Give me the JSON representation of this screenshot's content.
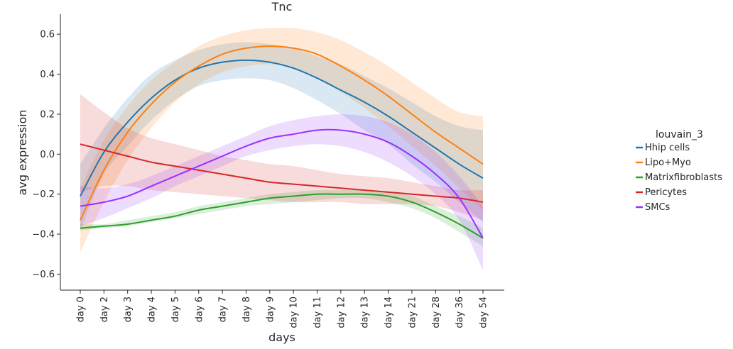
{
  "chart_data": {
    "type": "line",
    "title": "Tnc",
    "xlabel": "days",
    "ylabel": "avg expression",
    "categories": [
      "day 0",
      "day 2",
      "day 3",
      "day 4",
      "day 5",
      "day 6",
      "day 7",
      "day 8",
      "day 9",
      "day 10",
      "day 11",
      "day 12",
      "day 13",
      "day 14",
      "day 21",
      "day 28",
      "day 36",
      "day 54"
    ],
    "ylim": [
      -0.68,
      0.7
    ],
    "yticks": [
      -0.6,
      -0.4,
      -0.2,
      0.0,
      0.2,
      0.4,
      0.6
    ],
    "ytick_labels": [
      "−0.6",
      "−0.4",
      "−0.2",
      "0.0",
      "0.2",
      "0.4",
      "0.6"
    ],
    "grid": false,
    "legend": {
      "title": "louvain_3",
      "position": "right"
    },
    "series": [
      {
        "name": "Hhip cells",
        "color": "#1f77b4",
        "values": [
          -0.21,
          0.01,
          0.16,
          0.28,
          0.37,
          0.43,
          0.46,
          0.47,
          0.46,
          0.43,
          0.38,
          0.32,
          0.26,
          0.19,
          0.11,
          0.03,
          -0.05,
          -0.12
        ],
        "lower": [
          -0.38,
          -0.1,
          0.04,
          0.17,
          0.27,
          0.34,
          0.37,
          0.38,
          0.37,
          0.33,
          0.27,
          0.2,
          0.12,
          0.05,
          -0.05,
          -0.14,
          -0.24,
          -0.34
        ],
        "upper": [
          -0.05,
          0.13,
          0.28,
          0.4,
          0.47,
          0.52,
          0.55,
          0.56,
          0.55,
          0.53,
          0.49,
          0.45,
          0.39,
          0.33,
          0.26,
          0.19,
          0.14,
          0.12
        ]
      },
      {
        "name": "Lipo+Myo",
        "color": "#ff7f0e",
        "values": [
          -0.33,
          -0.08,
          0.11,
          0.25,
          0.36,
          0.44,
          0.5,
          0.53,
          0.54,
          0.53,
          0.5,
          0.44,
          0.37,
          0.29,
          0.2,
          0.11,
          0.03,
          -0.05
        ],
        "lower": [
          -0.49,
          -0.24,
          -0.03,
          0.13,
          0.26,
          0.35,
          0.41,
          0.44,
          0.45,
          0.43,
          0.38,
          0.31,
          0.23,
          0.14,
          0.04,
          -0.06,
          -0.17,
          -0.28
        ],
        "upper": [
          -0.17,
          0.07,
          0.24,
          0.37,
          0.46,
          0.54,
          0.59,
          0.62,
          0.63,
          0.63,
          0.61,
          0.57,
          0.51,
          0.44,
          0.36,
          0.28,
          0.21,
          0.19
        ]
      },
      {
        "name": "Matrixfibroblasts",
        "color": "#2ca02c",
        "values": [
          -0.37,
          -0.36,
          -0.35,
          -0.33,
          -0.31,
          -0.28,
          -0.26,
          -0.24,
          -0.22,
          -0.21,
          -0.2,
          -0.2,
          -0.2,
          -0.21,
          -0.24,
          -0.29,
          -0.35,
          -0.42
        ],
        "lower": [
          -0.38,
          -0.37,
          -0.36,
          -0.34,
          -0.32,
          -0.3,
          -0.28,
          -0.26,
          -0.25,
          -0.24,
          -0.23,
          -0.22,
          -0.22,
          -0.24,
          -0.27,
          -0.32,
          -0.39,
          -0.46
        ],
        "upper": [
          -0.35,
          -0.35,
          -0.33,
          -0.31,
          -0.29,
          -0.26,
          -0.24,
          -0.22,
          -0.2,
          -0.19,
          -0.18,
          -0.18,
          -0.18,
          -0.19,
          -0.21,
          -0.26,
          -0.31,
          -0.37
        ]
      },
      {
        "name": "Pericytes",
        "color": "#d62728",
        "values": [
          0.05,
          0.02,
          -0.01,
          -0.04,
          -0.06,
          -0.08,
          -0.1,
          -0.12,
          -0.14,
          -0.15,
          -0.16,
          -0.17,
          -0.18,
          -0.19,
          -0.2,
          -0.21,
          -0.22,
          -0.24
        ],
        "lower": [
          -0.19,
          -0.16,
          -0.16,
          -0.18,
          -0.19,
          -0.2,
          -0.21,
          -0.22,
          -0.23,
          -0.24,
          -0.24,
          -0.24,
          -0.25,
          -0.25,
          -0.25,
          -0.26,
          -0.29,
          -0.33
        ],
        "upper": [
          0.3,
          0.21,
          0.13,
          0.08,
          0.05,
          0.02,
          -0.01,
          -0.03,
          -0.05,
          -0.06,
          -0.08,
          -0.1,
          -0.11,
          -0.12,
          -0.14,
          -0.16,
          -0.18,
          -0.18
        ]
      },
      {
        "name": "SMCs",
        "color": "#9b30ff",
        "values": [
          -0.26,
          -0.24,
          -0.21,
          -0.16,
          -0.11,
          -0.06,
          -0.01,
          0.04,
          0.08,
          0.1,
          0.12,
          0.12,
          0.1,
          0.06,
          -0.01,
          -0.1,
          -0.22,
          -0.42
        ],
        "lower": [
          -0.36,
          -0.32,
          -0.27,
          -0.22,
          -0.16,
          -0.11,
          -0.06,
          -0.01,
          0.02,
          0.04,
          0.05,
          0.04,
          0.01,
          -0.04,
          -0.11,
          -0.2,
          -0.33,
          -0.58
        ],
        "upper": [
          -0.16,
          -0.17,
          -0.15,
          -0.11,
          -0.06,
          -0.01,
          0.04,
          0.09,
          0.14,
          0.17,
          0.19,
          0.2,
          0.19,
          0.16,
          0.1,
          0.01,
          -0.11,
          -0.26
        ]
      }
    ]
  }
}
